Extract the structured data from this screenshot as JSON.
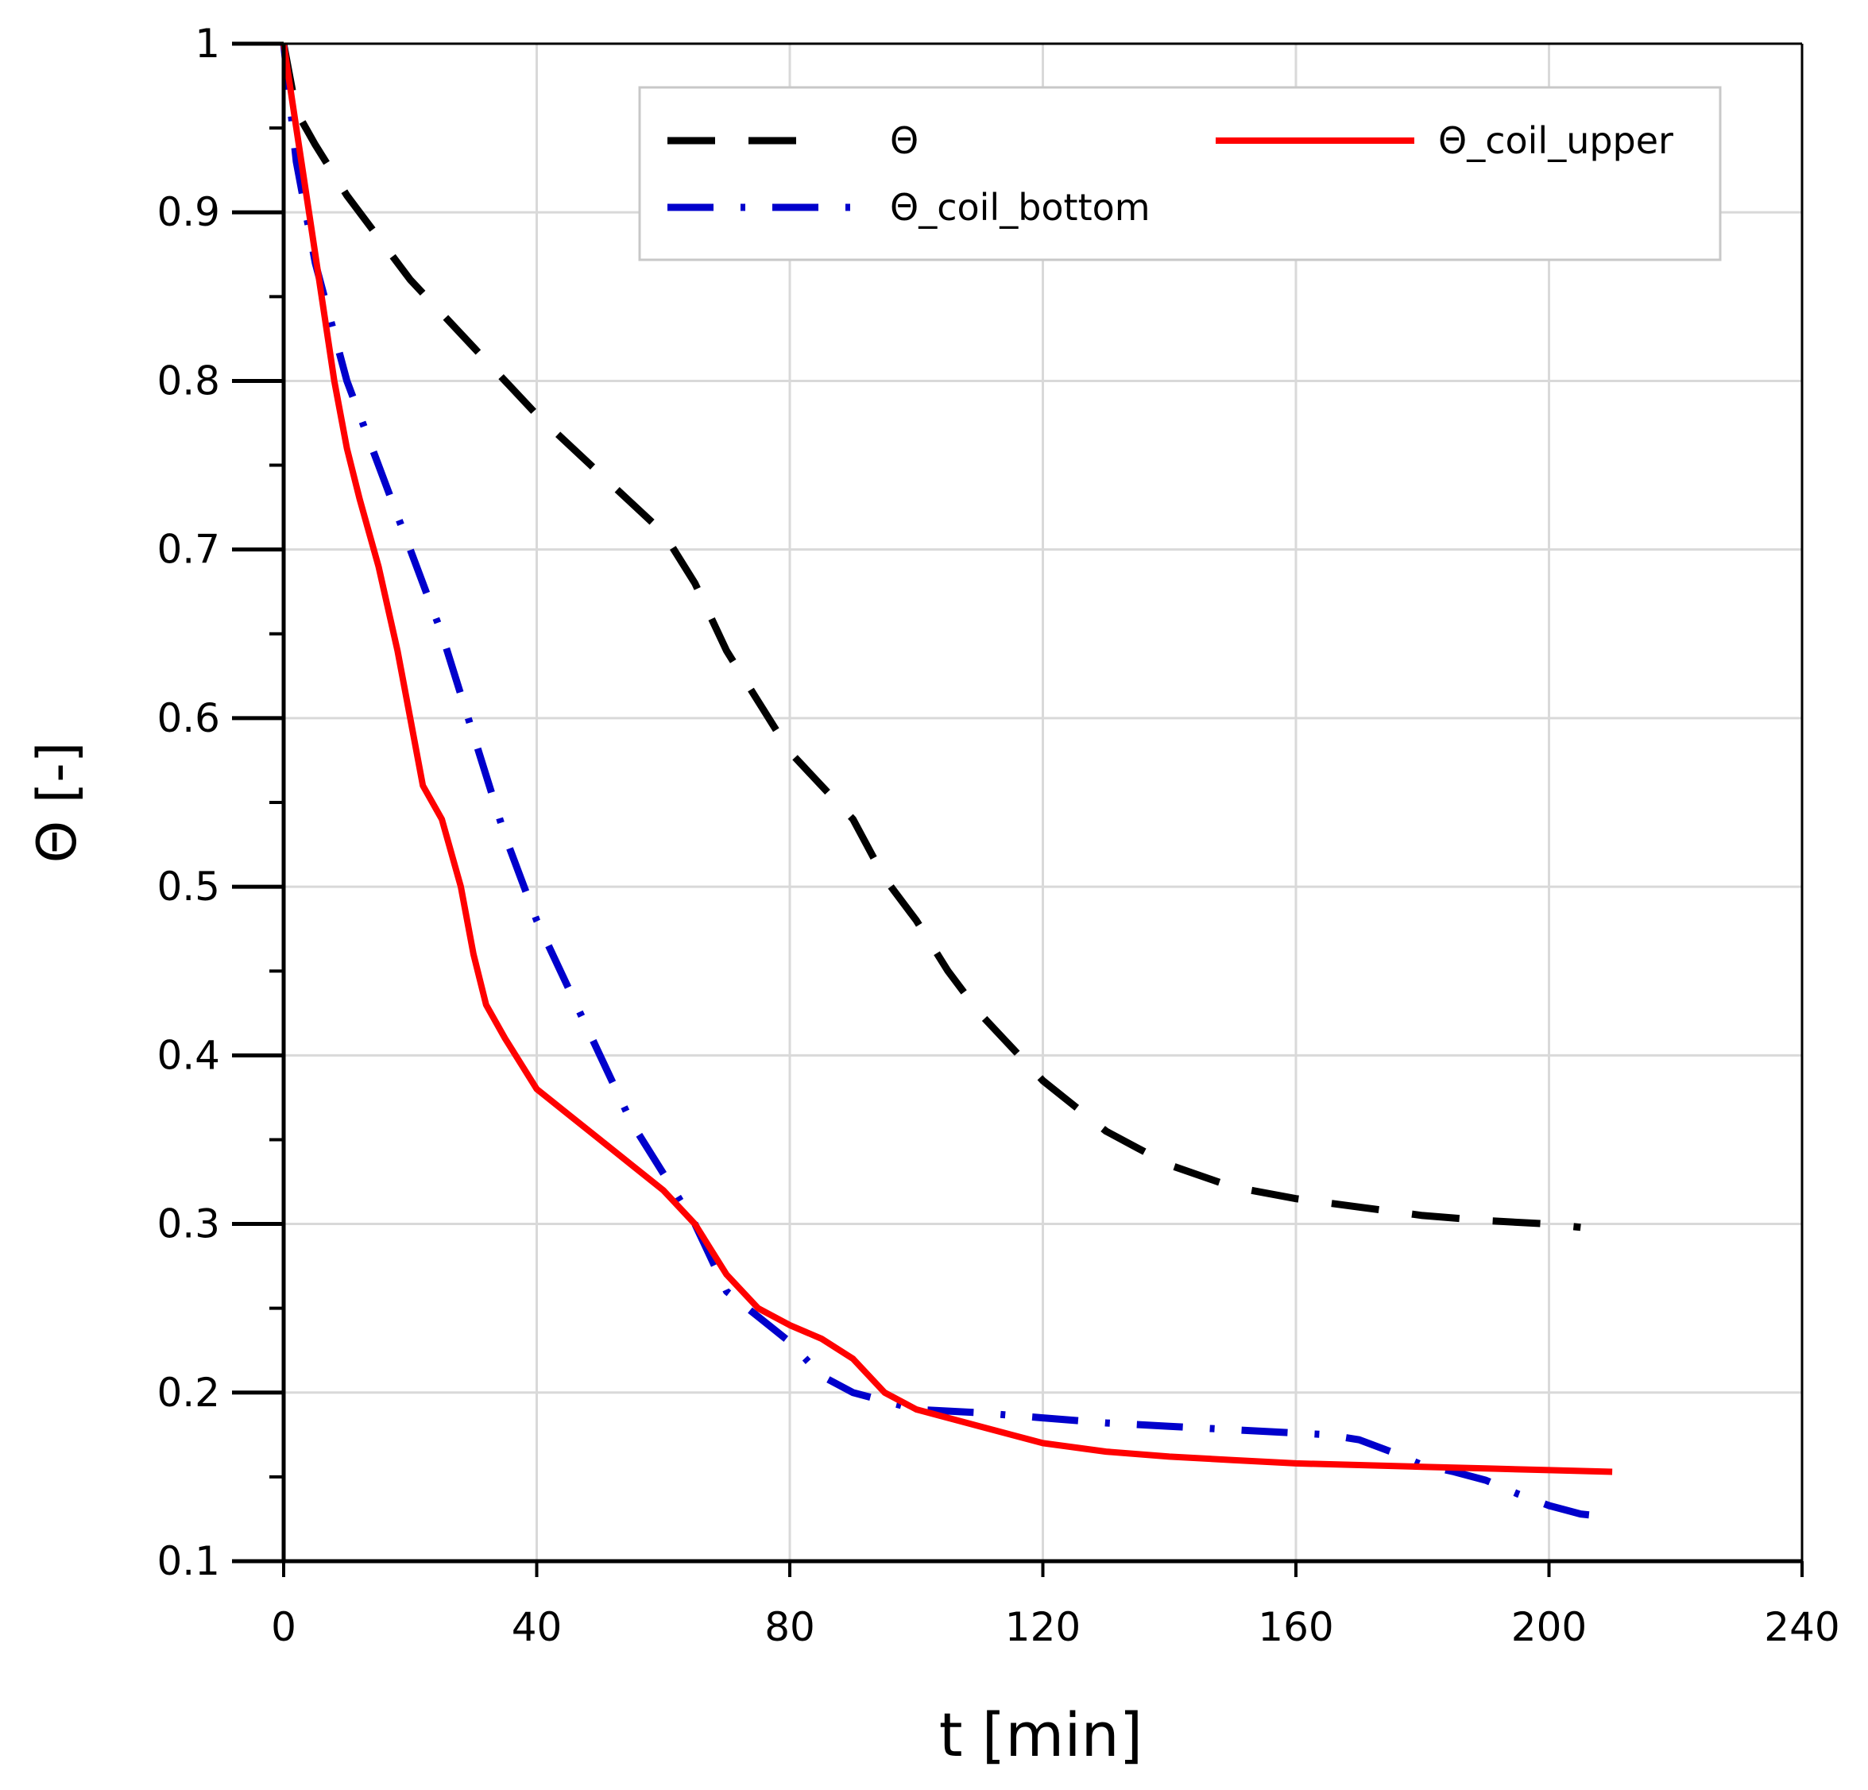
{
  "chart_data": {
    "type": "line",
    "title": "",
    "xlabel": "t [min]",
    "ylabel": "Θ [-]",
    "xlim": [
      0,
      240
    ],
    "ylim": [
      0.1,
      1.0
    ],
    "xticks": [
      0,
      40,
      80,
      120,
      160,
      200,
      240
    ],
    "xtick_labels": [
      "0",
      "40",
      "80",
      "120",
      "160",
      "200",
      "240"
    ],
    "yticks": [
      0.1,
      0.2,
      0.3,
      0.4,
      0.5,
      0.6,
      0.7,
      0.8,
      0.9,
      1.0
    ],
    "ytick_labels": [
      "0.1",
      "0.2",
      "0.3",
      "0.4",
      "0.5",
      "0.6",
      "0.7",
      "0.8",
      "0.9",
      "1"
    ],
    "grid": true,
    "legend_position": "top-right",
    "series": [
      {
        "name": "Θ",
        "color": "#000000",
        "style": "dashed",
        "x": [
          0,
          2,
          5,
          10,
          20,
          30,
          40,
          50,
          60,
          65,
          70,
          75,
          80,
          85,
          90,
          95,
          100,
          105,
          110,
          115,
          120,
          125,
          130,
          135,
          140,
          150,
          160,
          170,
          180,
          190,
          200,
          205
        ],
        "y": [
          1.0,
          0.96,
          0.94,
          0.91,
          0.86,
          0.82,
          0.78,
          0.745,
          0.71,
          0.68,
          0.64,
          0.61,
          0.58,
          0.56,
          0.54,
          0.505,
          0.48,
          0.45,
          0.425,
          0.405,
          0.385,
          0.37,
          0.355,
          0.345,
          0.335,
          0.322,
          0.315,
          0.31,
          0.305,
          0.302,
          0.3,
          0.298
        ]
      },
      {
        "name": "Θ_coil_bottom",
        "color": "#0000cc",
        "style": "dash-dot",
        "x": [
          0,
          2,
          5,
          10,
          15,
          20,
          25,
          30,
          35,
          40,
          45,
          50,
          55,
          60,
          65,
          70,
          75,
          80,
          85,
          90,
          95,
          100,
          110,
          120,
          130,
          140,
          150,
          160,
          165,
          170,
          175,
          180,
          185,
          190,
          195,
          200,
          205,
          210
        ],
        "y": [
          1.0,
          0.93,
          0.87,
          0.8,
          0.75,
          0.7,
          0.65,
          0.59,
          0.53,
          0.48,
          0.44,
          0.4,
          0.36,
          0.33,
          0.3,
          0.26,
          0.245,
          0.23,
          0.21,
          0.2,
          0.195,
          0.19,
          0.188,
          0.185,
          0.182,
          0.18,
          0.178,
          0.176,
          0.175,
          0.172,
          0.165,
          0.157,
          0.153,
          0.148,
          0.14,
          0.133,
          0.128,
          0.126
        ]
      },
      {
        "name": "Θ_coil_upper",
        "color": "#ff0000",
        "style": "solid",
        "x": [
          0,
          2,
          4,
          6,
          8,
          10,
          12,
          15,
          18,
          20,
          22,
          25,
          28,
          30,
          32,
          35,
          40,
          45,
          50,
          55,
          60,
          65,
          70,
          75,
          80,
          85,
          90,
          95,
          100,
          110,
          120,
          130,
          140,
          150,
          160,
          170,
          180,
          190,
          200,
          210
        ],
        "y": [
          1.0,
          0.95,
          0.9,
          0.85,
          0.8,
          0.76,
          0.73,
          0.69,
          0.64,
          0.6,
          0.56,
          0.54,
          0.5,
          0.46,
          0.43,
          0.41,
          0.38,
          0.365,
          0.35,
          0.335,
          0.32,
          0.3,
          0.27,
          0.25,
          0.24,
          0.232,
          0.22,
          0.2,
          0.19,
          0.18,
          0.17,
          0.165,
          0.162,
          0.16,
          0.158,
          0.157,
          0.156,
          0.155,
          0.154,
          0.153
        ]
      }
    ]
  }
}
